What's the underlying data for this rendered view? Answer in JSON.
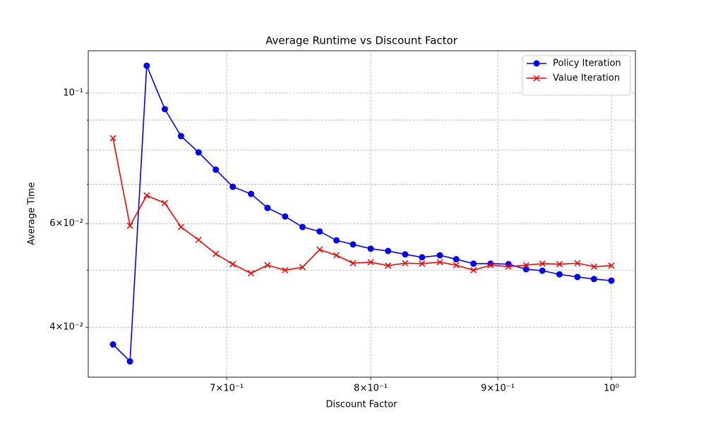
{
  "chart_data": {
    "type": "line",
    "title": "Average Runtime vs Discount Factor",
    "x_label": "Discount Factor",
    "y_label": "Average Time",
    "x": [
      0.63,
      0.64,
      0.65,
      0.661,
      0.671,
      0.682,
      0.693,
      0.704,
      0.716,
      0.727,
      0.739,
      0.751,
      0.763,
      0.775,
      0.787,
      0.8,
      0.813,
      0.826,
      0.839,
      0.853,
      0.866,
      0.88,
      0.894,
      0.909,
      0.924,
      0.938,
      0.953,
      0.969,
      0.984,
      1.0
    ],
    "series": [
      {
        "name": "Policy Iteration",
        "color": "#0000ff",
        "marker": "circle",
        "values": [
          0.0374,
          0.035,
          0.1113,
          0.0939,
          0.0845,
          0.0793,
          0.0741,
          0.0693,
          0.0674,
          0.0638,
          0.0617,
          0.0592,
          0.0582,
          0.0562,
          0.0553,
          0.0544,
          0.0539,
          0.0532,
          0.0526,
          0.053,
          0.0522,
          0.0513,
          0.0513,
          0.0512,
          0.0502,
          0.0499,
          0.0492,
          0.0487,
          0.0483,
          0.048
        ]
      },
      {
        "name": "Value Iteration",
        "color": "#ff0000",
        "marker": "x",
        "values": [
          0.0838,
          0.0595,
          0.067,
          0.065,
          0.0592,
          0.0563,
          0.0533,
          0.0512,
          0.0494,
          0.051,
          0.05,
          0.0506,
          0.0542,
          0.053,
          0.0514,
          0.0516,
          0.0509,
          0.0514,
          0.0513,
          0.0516,
          0.051,
          0.05,
          0.051,
          0.0507,
          0.051,
          0.0513,
          0.0512,
          0.0514,
          0.0507,
          0.0509
        ]
      }
    ],
    "xscale": "log",
    "yscale": "log",
    "xlim": [
      0.6157,
      1.0225
    ],
    "ylim": [
      0.0329,
      0.118
    ],
    "xticks": [
      {
        "value": 0.7,
        "label": "7×10⁻¹"
      },
      {
        "value": 0.8,
        "label": "8×10⁻¹"
      },
      {
        "value": 0.9,
        "label": "9×10⁻¹"
      },
      {
        "value": 1,
        "label": "10⁰"
      }
    ],
    "yticks": [
      {
        "value": 0.04,
        "label": "4×10⁻²"
      },
      {
        "value": 0.06,
        "label": "6×10⁻²"
      },
      {
        "value": 0.1,
        "label": "10⁻¹"
      }
    ],
    "yminorticks": [
      0.05,
      0.07,
      0.08,
      0.09
    ],
    "grid": true,
    "legend": "upper right"
  }
}
